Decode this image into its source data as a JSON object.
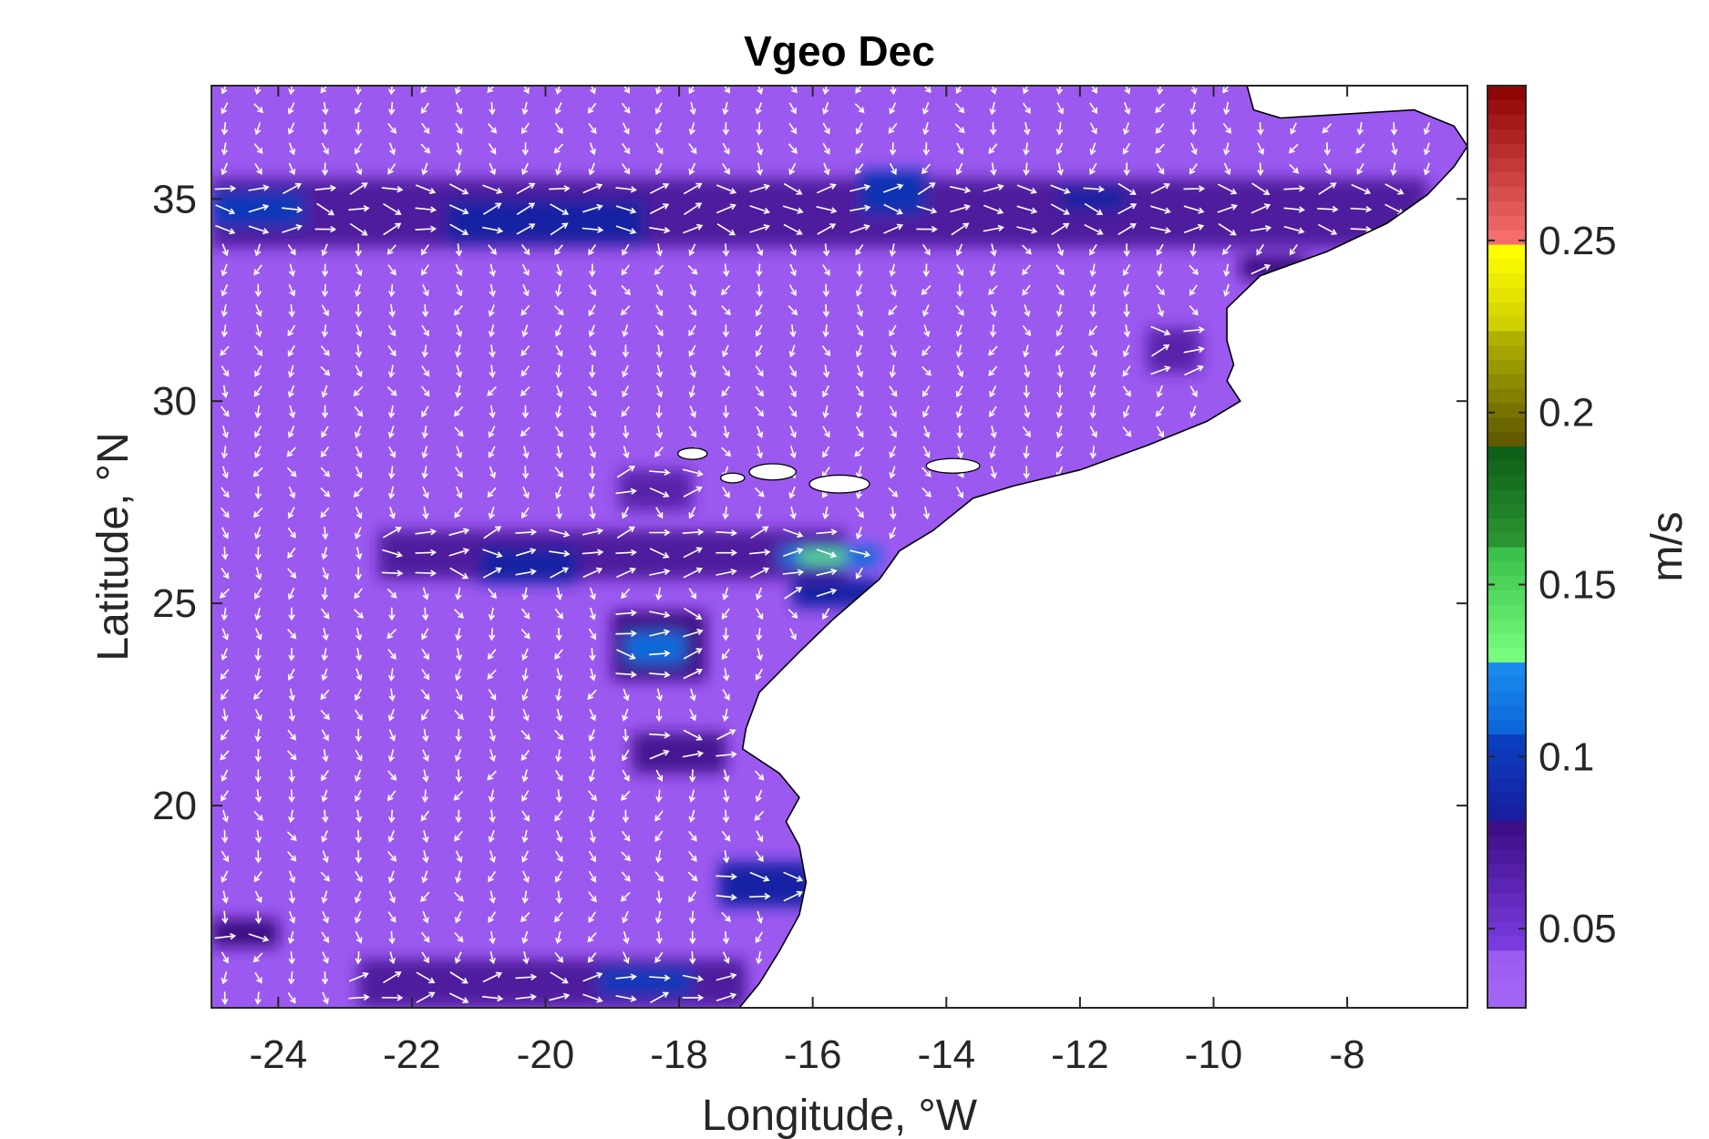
{
  "chart_data": {
    "type": "heatmap",
    "title": "Vgeo Dec",
    "xlabel": "Longitude, °W",
    "ylabel": "Latitude, °N",
    "xlim": [
      -25,
      -6.2
    ],
    "ylim": [
      15,
      37.8
    ],
    "xticks": [
      -24,
      -22,
      -20,
      -18,
      -16,
      -14,
      -12,
      -10,
      -8
    ],
    "yticks": [
      20,
      25,
      30,
      35
    ],
    "field_color": "#9b59f0",
    "arrow_color": "#ffffff",
    "land_color": "#ffffff",
    "coast_color": "#000000",
    "colorbar": {
      "label": "m/s",
      "range": [
        0.027,
        0.295
      ],
      "ticks": [
        0.05,
        0.1,
        0.15,
        0.2,
        0.25
      ],
      "colormap": [
        {
          "from": 0.027,
          "to": 0.045,
          "c0": "#a468f5",
          "c1": "#9b59f0"
        },
        {
          "from": 0.045,
          "to": 0.08,
          "c0": "#7a3ce0",
          "c1": "#3e0d84"
        },
        {
          "from": 0.08,
          "to": 0.105,
          "c0": "#1a1a9c",
          "c1": "#0a3fc0"
        },
        {
          "from": 0.105,
          "to": 0.128,
          "c0": "#0b5fd6",
          "c1": "#1a90f0"
        },
        {
          "from": 0.128,
          "to": 0.16,
          "c0": "#7aff80",
          "c1": "#39c04a"
        },
        {
          "from": 0.16,
          "to": 0.19,
          "c0": "#2e9a35",
          "c1": "#0d5c16"
        },
        {
          "from": 0.19,
          "to": 0.222,
          "c0": "#5c5400",
          "c1": "#b0b000"
        },
        {
          "from": 0.222,
          "to": 0.247,
          "c0": "#c9c700",
          "c1": "#ffff00"
        },
        {
          "from": 0.247,
          "to": 0.295,
          "c0": "#ff7777",
          "c1": "#8b0000"
        }
      ]
    },
    "bands": [
      {
        "lon": [
          -25,
          -6.8
        ],
        "lat": [
          33.8,
          35.5
        ],
        "value": 0.07
      },
      {
        "lon": [
          -25,
          -23.6
        ],
        "lat": [
          34.3,
          35.2
        ],
        "value": 0.1
      },
      {
        "lon": [
          -21.5,
          -18.5
        ],
        "lat": [
          33.9,
          35.0
        ],
        "value": 0.085
      },
      {
        "lon": [
          -15.3,
          -14.3
        ],
        "lat": [
          34.6,
          35.7
        ],
        "value": 0.095
      },
      {
        "lon": [
          -12.3,
          -11.3
        ],
        "lat": [
          34.7,
          35.3
        ],
        "value": 0.085
      },
      {
        "lon": [
          -9.6,
          -8.6
        ],
        "lat": [
          33.0,
          33.6
        ],
        "value": 0.08
      },
      {
        "lon": [
          -22.5,
          -15.5
        ],
        "lat": [
          25.6,
          26.8
        ],
        "value": 0.07
      },
      {
        "lon": [
          -21.0,
          -19.5
        ],
        "lat": [
          25.5,
          26.4
        ],
        "value": 0.085
      },
      {
        "lon": [
          -16.5,
          -15.0
        ],
        "lat": [
          25.9,
          26.4
        ],
        "value": 0.11
      },
      {
        "lon": [
          -16.2,
          -15.5
        ],
        "lat": [
          26.0,
          26.3
        ],
        "value": 0.14
      },
      {
        "lon": [
          -16.3,
          -15.0
        ],
        "lat": [
          24.9,
          25.6
        ],
        "value": 0.085
      },
      {
        "lon": [
          -19.0,
          -17.6
        ],
        "lat": [
          23.1,
          24.8
        ],
        "value": 0.08
      },
      {
        "lon": [
          -18.8,
          -17.9
        ],
        "lat": [
          23.5,
          24.3
        ],
        "value": 0.11
      },
      {
        "lon": [
          -18.7,
          -17.3
        ],
        "lat": [
          20.8,
          21.8
        ],
        "value": 0.075
      },
      {
        "lon": [
          -17.4,
          -16.0
        ],
        "lat": [
          17.5,
          18.6
        ],
        "value": 0.085
      },
      {
        "lon": [
          -22.8,
          -17.0
        ],
        "lat": [
          15.0,
          16.2
        ],
        "value": 0.07
      },
      {
        "lon": [
          -19.2,
          -17.8
        ],
        "lat": [
          15.3,
          16.0
        ],
        "value": 0.1
      },
      {
        "lon": [
          -25,
          -24.0
        ],
        "lat": [
          16.5,
          17.2
        ],
        "value": 0.08
      },
      {
        "lon": [
          -11.0,
          -10.2
        ],
        "lat": [
          30.7,
          31.8
        ],
        "value": 0.065
      },
      {
        "lon": [
          -18.9,
          -17.8
        ],
        "lat": [
          27.3,
          28.3
        ],
        "value": 0.065
      }
    ],
    "coastline": [
      [
        -9.5,
        37.8
      ],
      [
        -9.4,
        37.2
      ],
      [
        -9.0,
        37.0
      ],
      [
        -8.0,
        37.1
      ],
      [
        -7.0,
        37.2
      ],
      [
        -6.4,
        36.8
      ],
      [
        -6.2,
        36.3
      ],
      [
        -6.4,
        35.8
      ],
      [
        -6.8,
        35.1
      ],
      [
        -7.4,
        34.4
      ],
      [
        -8.3,
        33.7
      ],
      [
        -9.3,
        33.1
      ],
      [
        -9.8,
        32.3
      ],
      [
        -9.8,
        31.5
      ],
      [
        -9.7,
        30.9
      ],
      [
        -9.8,
        30.5
      ],
      [
        -9.6,
        30.0
      ],
      [
        -10.1,
        29.5
      ],
      [
        -11.0,
        28.9
      ],
      [
        -12.0,
        28.3
      ],
      [
        -13.0,
        27.9
      ],
      [
        -13.6,
        27.6
      ],
      [
        -14.2,
        26.8
      ],
      [
        -14.7,
        26.3
      ],
      [
        -15.0,
        25.6
      ],
      [
        -15.7,
        24.6
      ],
      [
        -16.2,
        23.8
      ],
      [
        -16.8,
        22.8
      ],
      [
        -17.0,
        21.9
      ],
      [
        -17.05,
        21.4
      ],
      [
        -16.5,
        20.8
      ],
      [
        -16.2,
        20.2
      ],
      [
        -16.4,
        19.6
      ],
      [
        -16.2,
        19.0
      ],
      [
        -16.1,
        18.1
      ],
      [
        -16.2,
        17.3
      ],
      [
        -16.5,
        16.4
      ],
      [
        -16.8,
        15.6
      ],
      [
        -17.1,
        15.0
      ]
    ]
  }
}
